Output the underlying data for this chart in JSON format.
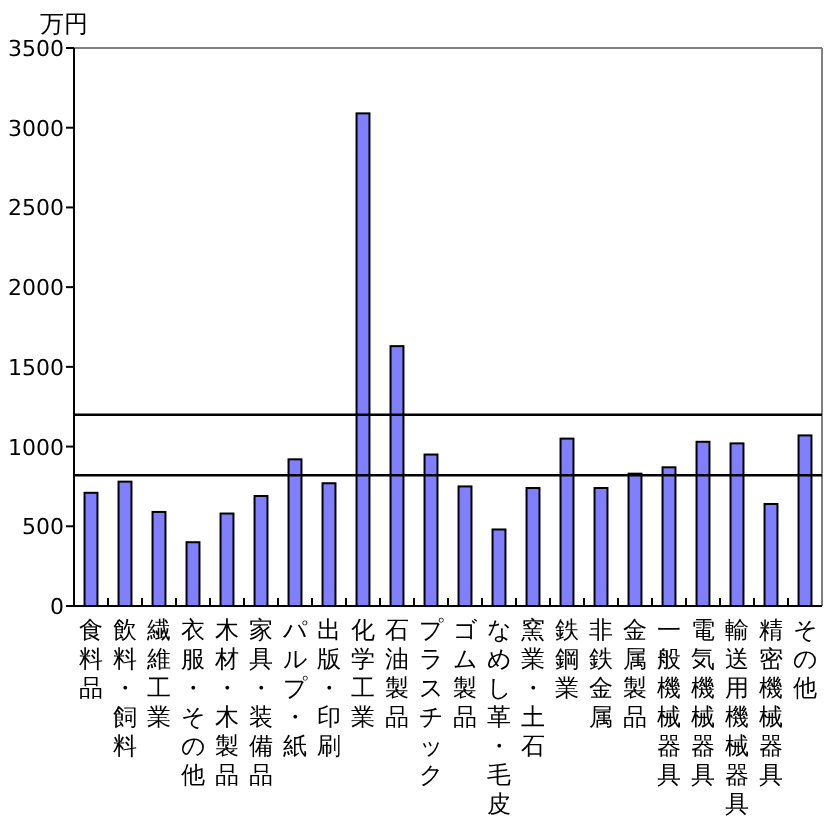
{
  "chart_data": {
    "type": "bar",
    "ylabel": "万円",
    "categories": [
      "食料品",
      "飲料・飼料",
      "繊維工業",
      "衣服・その他",
      "木材・木製品",
      "家具・装備品",
      "パルプ・紙",
      "出版・印刷",
      "化学工業",
      "石油製品",
      "プラスチック",
      "ゴム製品",
      "なめし革・毛皮",
      "窯業・土石",
      "鉄鋼業",
      "非鉄金属",
      "金属製品",
      "一般機械器具",
      "電気機械器具",
      "輸送用機械器具",
      "精密機械器具",
      "その他"
    ],
    "values": [
      710,
      780,
      590,
      400,
      580,
      690,
      920,
      770,
      3090,
      1630,
      950,
      750,
      480,
      740,
      1050,
      740,
      830,
      870,
      1030,
      1020,
      640,
      1070
    ],
    "color": "#8080ff",
    "ylim": [
      0,
      3500
    ],
    "yticks": [
      0,
      500,
      1000,
      1500,
      2000,
      2500,
      3000,
      3500
    ],
    "ref_lines": [
      {
        "axis": "y",
        "value": 1200,
        "color": "#000000"
      },
      {
        "axis": "y",
        "value": 820,
        "color": "#000000"
      }
    ],
    "grid": false
  }
}
